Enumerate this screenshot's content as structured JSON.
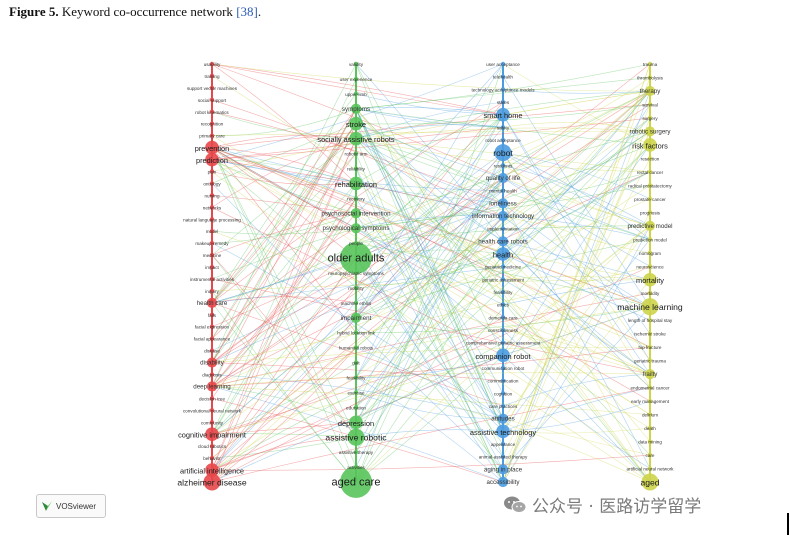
{
  "caption": {
    "label": "Figure 5.",
    "title": "Keyword co-occurrence network",
    "reference": "[38]",
    "end": "."
  },
  "vosviewer_badge": "VOSviewer",
  "watermark": "公众号 · 医路访学留学",
  "colors": {
    "red": "#e8474a",
    "green": "#58c45a",
    "blue": "#4b9be0",
    "yellow": "#cdd44a"
  },
  "clusters": [
    {
      "name": "red",
      "items": [
        {
          "label": "usability",
          "size": 2
        },
        {
          "label": "training",
          "size": 2
        },
        {
          "label": "support vector machines",
          "size": 2
        },
        {
          "label": "social support",
          "size": 2
        },
        {
          "label": "robot kinematics",
          "size": 2
        },
        {
          "label": "recognition",
          "size": 2
        },
        {
          "label": "primary care",
          "size": 2
        },
        {
          "label": "prevention",
          "size": 4
        },
        {
          "label": "prediction",
          "size": 4
        },
        {
          "label": "pain",
          "size": 2
        },
        {
          "label": "ontology",
          "size": 2
        },
        {
          "label": "nursing",
          "size": 2
        },
        {
          "label": "networks",
          "size": 2
        },
        {
          "label": "natural language processing",
          "size": 2
        },
        {
          "label": "model",
          "size": 2
        },
        {
          "label": "makeup-remedy",
          "size": 2
        },
        {
          "label": "medicine",
          "size": 2
        },
        {
          "label": "impact",
          "size": 2
        },
        {
          "label": "instrumental activities",
          "size": 2
        },
        {
          "label": "inquiry",
          "size": 2
        },
        {
          "label": "health care",
          "size": 3
        },
        {
          "label": "falls",
          "size": 2
        },
        {
          "label": "facial expression",
          "size": 2
        },
        {
          "label": "facial appearance",
          "size": 2
        },
        {
          "label": "disease",
          "size": 2
        },
        {
          "label": "disability",
          "size": 3
        },
        {
          "label": "diagnosis",
          "size": 2
        },
        {
          "label": "deep learning",
          "size": 3
        },
        {
          "label": "decision tree",
          "size": 2
        },
        {
          "label": "convolutional neural network",
          "size": 2
        },
        {
          "label": "community",
          "size": 2
        },
        {
          "label": "cognitive impairment",
          "size": 4
        },
        {
          "label": "cloud robotics",
          "size": 2
        },
        {
          "label": "behavior",
          "size": 2
        },
        {
          "label": "artificial intelligence",
          "size": 4
        },
        {
          "label": "alzheimer disease",
          "size": 5
        }
      ]
    },
    {
      "name": "green",
      "items": [
        {
          "label": "validity",
          "size": 2
        },
        {
          "label": "user experience",
          "size": 2
        },
        {
          "label": "upper-limb",
          "size": 2
        },
        {
          "label": "symptoms",
          "size": 3
        },
        {
          "label": "stroke",
          "size": 4
        },
        {
          "label": "socially assistive robots",
          "size": 4
        },
        {
          "label": "robotic arm",
          "size": 2
        },
        {
          "label": "reliability",
          "size": 2
        },
        {
          "label": "rehabilitation",
          "size": 4
        },
        {
          "label": "recovery",
          "size": 2
        },
        {
          "label": "psychosocial intervention",
          "size": 3
        },
        {
          "label": "psychological symptoms",
          "size": 3
        },
        {
          "label": "people",
          "size": 2
        },
        {
          "label": "older adults",
          "size": 7
        },
        {
          "label": "neuropsychiatric symptoms",
          "size": 2
        },
        {
          "label": "mobility",
          "size": 2
        },
        {
          "label": "machine ethics",
          "size": 2
        },
        {
          "label": "impairment",
          "size": 3
        },
        {
          "label": "hybrid location link",
          "size": 2
        },
        {
          "label": "humanoid robots",
          "size": 2
        },
        {
          "label": "gait",
          "size": 2
        },
        {
          "label": "feasibility",
          "size": 2
        },
        {
          "label": "exercise",
          "size": 2
        },
        {
          "label": "education",
          "size": 2
        },
        {
          "label": "depression",
          "size": 4
        },
        {
          "label": "assistive robotic",
          "size": 5
        },
        {
          "label": "assistive therapy",
          "size": 2
        },
        {
          "label": "activities",
          "size": 2
        },
        {
          "label": "aged care",
          "size": 7
        }
      ]
    },
    {
      "name": "blue",
      "items": [
        {
          "label": "user acceptance",
          "size": 2
        },
        {
          "label": "telehealth",
          "size": 2
        },
        {
          "label": "technology acceptance models",
          "size": 2
        },
        {
          "label": "states",
          "size": 2
        },
        {
          "label": "smart home",
          "size": 4
        },
        {
          "label": "safety",
          "size": 2
        },
        {
          "label": "robot acceptance",
          "size": 2
        },
        {
          "label": "robot",
          "size": 5
        },
        {
          "label": "residents",
          "size": 2
        },
        {
          "label": "quality of life",
          "size": 3
        },
        {
          "label": "mental health",
          "size": 2
        },
        {
          "label": "loneliness",
          "size": 3
        },
        {
          "label": "information technology",
          "size": 3
        },
        {
          "label": "implementation",
          "size": 2
        },
        {
          "label": "health care robots",
          "size": 3
        },
        {
          "label": "health",
          "size": 4
        },
        {
          "label": "geriatric medicine",
          "size": 2
        },
        {
          "label": "geriatric assessment",
          "size": 2
        },
        {
          "label": "feasibility",
          "size": 2
        },
        {
          "label": "ethics",
          "size": 2
        },
        {
          "label": "dementia care",
          "size": 2
        },
        {
          "label": "consciousness",
          "size": 2
        },
        {
          "label": "comprehensive geriatric assessment",
          "size": 2
        },
        {
          "label": "companion robot",
          "size": 4
        },
        {
          "label": "communication robot",
          "size": 2
        },
        {
          "label": "communication",
          "size": 2
        },
        {
          "label": "cognition",
          "size": 2
        },
        {
          "label": "care practices",
          "size": 2
        },
        {
          "label": "attitudes",
          "size": 3
        },
        {
          "label": "assistive technology",
          "size": 4
        },
        {
          "label": "appearance",
          "size": 2
        },
        {
          "label": "animal-assisted therapy",
          "size": 2
        },
        {
          "label": "aging in place",
          "size": 3
        },
        {
          "label": "accessibility",
          "size": 3
        }
      ]
    },
    {
      "name": "yellow",
      "items": [
        {
          "label": "trauma",
          "size": 2
        },
        {
          "label": "thrombolysis",
          "size": 2
        },
        {
          "label": "therapy",
          "size": 3
        },
        {
          "label": "survival",
          "size": 2
        },
        {
          "label": "surgery",
          "size": 2
        },
        {
          "label": "robotic surgery",
          "size": 3
        },
        {
          "label": "risk factors",
          "size": 4
        },
        {
          "label": "resection",
          "size": 2
        },
        {
          "label": "rectal cancer",
          "size": 2
        },
        {
          "label": "radical prostatectomy",
          "size": 2
        },
        {
          "label": "prostate cancer",
          "size": 2
        },
        {
          "label": "prognosis",
          "size": 2
        },
        {
          "label": "predictive model",
          "size": 3
        },
        {
          "label": "prediction model",
          "size": 2
        },
        {
          "label": "nomogram",
          "size": 2
        },
        {
          "label": "neuroscience",
          "size": 2
        },
        {
          "label": "mortality",
          "size": 4
        },
        {
          "label": "morbidity",
          "size": 2
        },
        {
          "label": "machine learning",
          "size": 5
        },
        {
          "label": "length of hospital stay",
          "size": 2
        },
        {
          "label": "ischemic stroke",
          "size": 2
        },
        {
          "label": "hip fracture",
          "size": 2
        },
        {
          "label": "geriatric trauma",
          "size": 2
        },
        {
          "label": "frailty",
          "size": 3
        },
        {
          "label": "endometrial cancer",
          "size": 2
        },
        {
          "label": "early management",
          "size": 2
        },
        {
          "label": "delirium",
          "size": 2
        },
        {
          "label": "death",
          "size": 2
        },
        {
          "label": "data mining",
          "size": 2
        },
        {
          "label": "care",
          "size": 2
        },
        {
          "label": "artificial neural network",
          "size": 2
        },
        {
          "label": "aged",
          "size": 5
        }
      ]
    }
  ]
}
